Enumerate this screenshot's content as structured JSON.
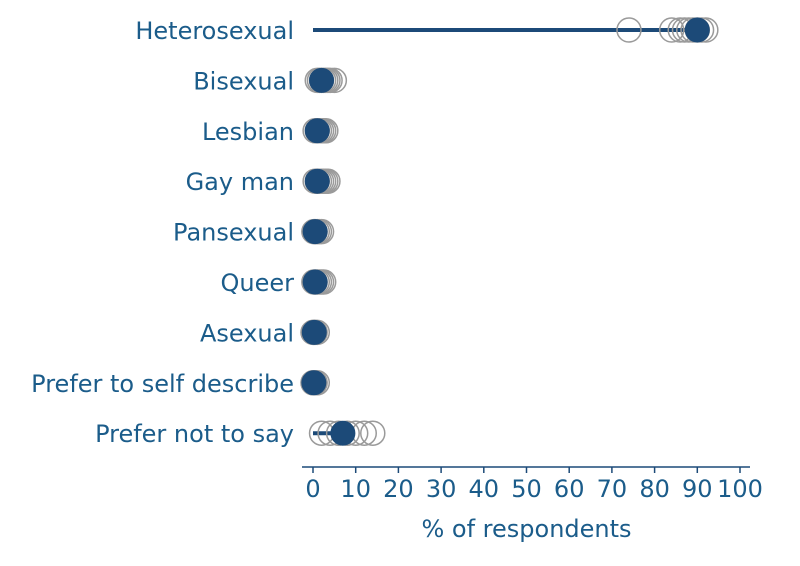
{
  "chart_data": {
    "type": "scatter",
    "xlabel": "% of respondents",
    "xlim": [
      0,
      100
    ],
    "xticks": [
      0,
      10,
      20,
      30,
      40,
      50,
      60,
      70,
      80,
      90,
      100
    ],
    "colors": {
      "main": "#1c4a78",
      "others_stroke": "#9a9a9a",
      "text": "#1b5c8a",
      "axis": "#1c4a78"
    },
    "categories": [
      "Heterosexual",
      "Bisexual",
      "Lesbian",
      "Gay man",
      "Pansexual",
      "Queer",
      "Asexual",
      "Prefer to self describe",
      "Prefer not to say"
    ],
    "series": [
      {
        "values": [
          90,
          2,
          1,
          1,
          0.5,
          0.5,
          0.3,
          0.2,
          7
        ]
      }
    ],
    "comparison_points": [
      [
        74,
        84,
        86,
        87,
        88,
        89,
        90,
        91,
        92
      ],
      [
        1,
        1.5,
        2,
        2.5,
        3,
        3.5,
        4,
        5
      ],
      [
        0.5,
        1,
        1.5,
        2,
        2.5,
        3
      ],
      [
        0.5,
        1,
        1.5,
        2,
        2.5,
        3,
        3.5
      ],
      [
        0.2,
        0.5,
        1,
        1.5,
        2
      ],
      [
        0.2,
        0.5,
        1,
        1.5,
        2,
        2.5
      ],
      [
        0,
        0.2,
        0.5,
        1
      ],
      [
        0,
        0.2,
        0.5,
        1
      ],
      [
        2,
        4,
        6,
        8,
        10,
        12,
        14
      ]
    ],
    "range_lines": [
      [
        0,
        90
      ],
      null,
      null,
      null,
      null,
      null,
      null,
      null,
      [
        0,
        7
      ]
    ]
  }
}
